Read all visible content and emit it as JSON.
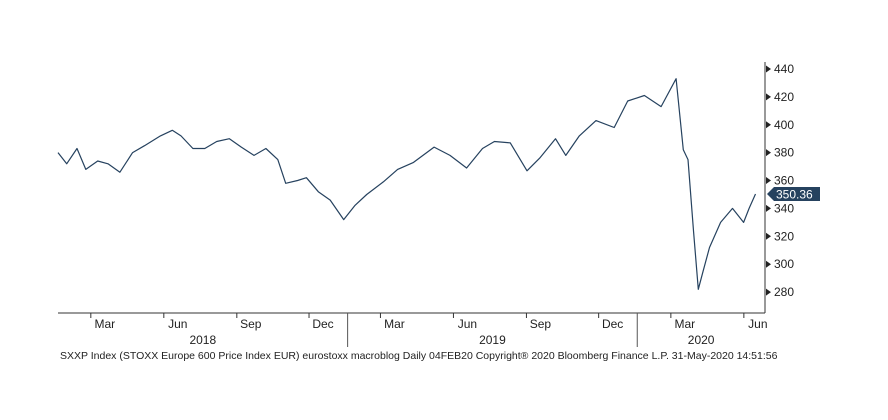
{
  "chart_data": {
    "type": "line",
    "series": [
      {
        "color": "#26425f",
        "points": [
          [
            "2018-01-01",
            380
          ],
          [
            "2018-01-12",
            372
          ],
          [
            "2018-01-25",
            383
          ],
          [
            "2018-02-05",
            368
          ],
          [
            "2018-02-20",
            374
          ],
          [
            "2018-03-05",
            372
          ],
          [
            "2018-03-20",
            366
          ],
          [
            "2018-04-05",
            380
          ],
          [
            "2018-04-20",
            385
          ],
          [
            "2018-05-10",
            392
          ],
          [
            "2018-05-25",
            396
          ],
          [
            "2018-06-05",
            392
          ],
          [
            "2018-06-20",
            383
          ],
          [
            "2018-07-05",
            383
          ],
          [
            "2018-07-20",
            388
          ],
          [
            "2018-08-05",
            390
          ],
          [
            "2018-08-20",
            384
          ],
          [
            "2018-09-05",
            378
          ],
          [
            "2018-09-20",
            383
          ],
          [
            "2018-10-05",
            375
          ],
          [
            "2018-10-15",
            358
          ],
          [
            "2018-10-30",
            360
          ],
          [
            "2018-11-10",
            362
          ],
          [
            "2018-11-25",
            352
          ],
          [
            "2018-12-10",
            346
          ],
          [
            "2018-12-27",
            332
          ],
          [
            "2019-01-10",
            342
          ],
          [
            "2019-01-25",
            350
          ],
          [
            "2019-02-15",
            359
          ],
          [
            "2019-03-05",
            368
          ],
          [
            "2019-03-25",
            373
          ],
          [
            "2019-04-20",
            384
          ],
          [
            "2019-05-10",
            378
          ],
          [
            "2019-05-31",
            369
          ],
          [
            "2019-06-20",
            383
          ],
          [
            "2019-07-05",
            388
          ],
          [
            "2019-07-25",
            387
          ],
          [
            "2019-08-15",
            367
          ],
          [
            "2019-08-31",
            376
          ],
          [
            "2019-09-20",
            390
          ],
          [
            "2019-10-03",
            378
          ],
          [
            "2019-10-20",
            392
          ],
          [
            "2019-11-10",
            403
          ],
          [
            "2019-12-03",
            398
          ],
          [
            "2019-12-20",
            417
          ],
          [
            "2020-01-10",
            421
          ],
          [
            "2020-01-31",
            413
          ],
          [
            "2020-02-19",
            433
          ],
          [
            "2020-02-28",
            382
          ],
          [
            "2020-03-05",
            375
          ],
          [
            "2020-03-12",
            323
          ],
          [
            "2020-03-18",
            282
          ],
          [
            "2020-03-24",
            295
          ],
          [
            "2020-04-01",
            312
          ],
          [
            "2020-04-15",
            330
          ],
          [
            "2020-04-30",
            340
          ],
          [
            "2020-05-14",
            330
          ],
          [
            "2020-05-21",
            340
          ],
          [
            "2020-05-29",
            350.36
          ]
        ]
      }
    ],
    "last_value_label": "350.36",
    "y_axis": {
      "position": "right",
      "ticks": [
        280,
        300,
        320,
        340,
        360,
        380,
        400,
        420,
        440
      ],
      "range": [
        265,
        445
      ]
    },
    "x_axis": {
      "range": [
        "2018-01-01",
        "2020-06-10"
      ],
      "months": [
        {
          "date": "2018-03-01",
          "label": "Mar"
        },
        {
          "date": "2018-06-01",
          "label": "Jun"
        },
        {
          "date": "2018-09-01",
          "label": "Sep"
        },
        {
          "date": "2018-12-01",
          "label": "Dec"
        },
        {
          "date": "2019-03-01",
          "label": "Mar"
        },
        {
          "date": "2019-06-01",
          "label": "Jun"
        },
        {
          "date": "2019-09-01",
          "label": "Sep"
        },
        {
          "date": "2019-12-01",
          "label": "Dec"
        },
        {
          "date": "2020-03-01",
          "label": "Mar"
        },
        {
          "date": "2020-06-01",
          "label": "Jun"
        }
      ],
      "years": [
        {
          "label": "2018",
          "start": "2018-01-01",
          "end": "2019-01-01"
        },
        {
          "label": "2019",
          "start": "2019-01-01",
          "end": "2020-01-01"
        },
        {
          "label": "2020",
          "start": "2020-01-01",
          "end": "2020-06-10"
        }
      ]
    },
    "grid": false
  },
  "footer": {
    "text": "SXXP Index (STOXX Europe 600 Price Index EUR) eurostoxx macroblog  Daily 04FEB20  Copyright® 2020 Bloomberg Finance L.P.  31-May-2020 14:51:56"
  }
}
